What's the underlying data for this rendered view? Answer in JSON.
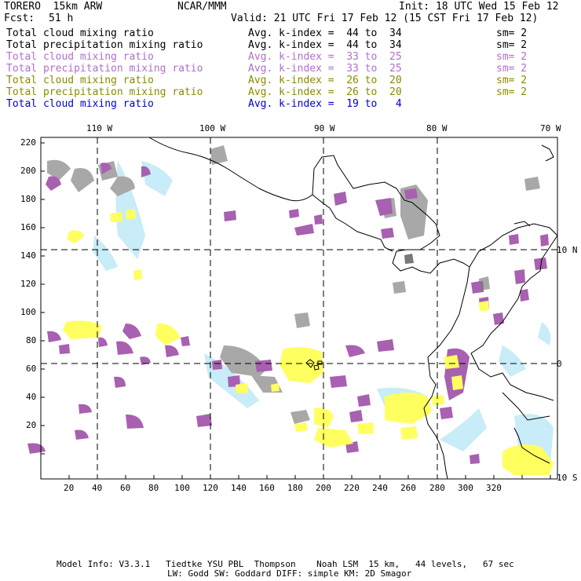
{
  "header": {
    "model": "TORERO  15km ARW",
    "org": "NCAR/MMM",
    "init": "Init: 18 UTC Wed 15 Feb 12",
    "fcst_label": "Fcst:",
    "fcst_value": "51 h",
    "valid": "Valid: 21 UTC Fri 17 Feb 12 (15 CST Fri 17 Feb 12)"
  },
  "legend": [
    {
      "field": "Total cloud mixing ratio",
      "kindex": "Avg. k-index =  44 to  34",
      "sm": "sm= 2",
      "color": "#000000"
    },
    {
      "field": "Total precipitation mixing ratio",
      "kindex": "Avg. k-index =  44 to  34",
      "sm": "sm= 2",
      "color": "#000000"
    },
    {
      "field": "Total cloud mixing ratio",
      "kindex": "Avg. k-index =  33 to  25",
      "sm": "sm= 2",
      "color": "#b070c8"
    },
    {
      "field": "Total precipitation mixing ratio",
      "kindex": "Avg. k-index =  33 to  25",
      "sm": "sm= 2",
      "color": "#b070c8"
    },
    {
      "field": "Total cloud mixing ratio",
      "kindex": "Avg. k-index =  26 to  20",
      "sm": "sm= 2",
      "color": "#8a8a00"
    },
    {
      "field": "Total precipitation mixing ratio",
      "kindex": "Avg. k-index =  26 to  20",
      "sm": "sm= 2",
      "color": "#8a8a00"
    },
    {
      "field": "Total cloud mixing ratio",
      "kindex": "Avg. k-index =  19 to   4",
      "sm": "",
      "color": "#0000cc"
    }
  ],
  "map": {
    "lon_labels": [
      "110 W",
      "100 W",
      "90 W",
      "80 W",
      "70 W"
    ],
    "lat_labels": [
      "10 N",
      "0",
      "10 S"
    ],
    "y_ticks": [
      "220",
      "200",
      "180",
      "160",
      "140",
      "120",
      "100",
      "80",
      "60",
      "40",
      "20"
    ],
    "x_ticks": [
      "20",
      "40",
      "60",
      "80",
      "100",
      "120",
      "140",
      "160",
      "180",
      "200",
      "220",
      "240",
      "260",
      "280",
      "300",
      "320"
    ],
    "colors": {
      "gray": "#a8a8a8",
      "dark_gray": "#787878",
      "purple": "#a860b0",
      "yellow": "#ffff60",
      "light_blue": "#c8ecf8",
      "coast": "#000000"
    }
  },
  "footer": {
    "line1": "Model Info: V3.3.1   Tiedtke YSU PBL  Thompson    Noah LSM  15 km,   44 levels,   67 sec",
    "line2": "LW: Godd SW: Goddard DIFF: simple KM: 2D Smagor"
  }
}
